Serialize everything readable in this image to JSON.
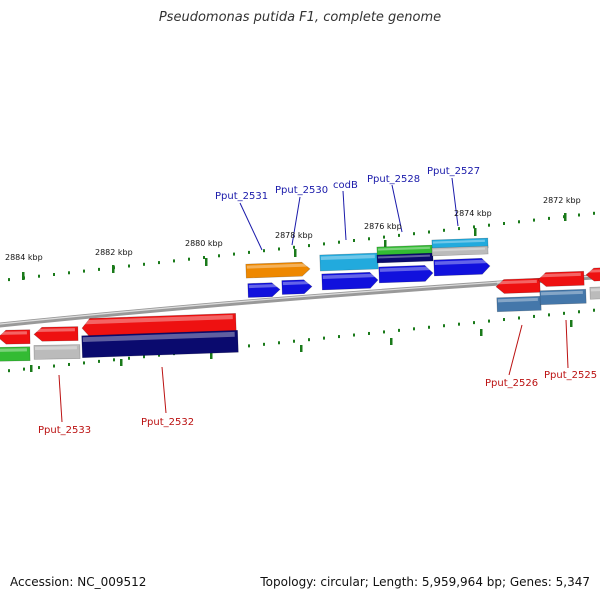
{
  "title": "Pseudomonas putida F1, complete genome",
  "footer": {
    "accession": "Accession: NC_009512",
    "summary": "Topology: circular; Length: 5,959,964 bp; Genes: 5,347"
  },
  "colors": {
    "backbone": "#888888",
    "tick": "#1a7a1a",
    "label_forward": "#1a1aaa",
    "label_reverse": "#bb1111",
    "leader": "#1a1aaa",
    "leader_reverse": "#bb1111"
  },
  "ticks": [
    {
      "label": "2884 kbp"
    },
    {
      "label": "2882 kbp"
    },
    {
      "label": "2880 kbp"
    },
    {
      "label": "2878 kbp"
    },
    {
      "label": "2876 kbp"
    },
    {
      "label": "2874 kbp"
    },
    {
      "label": "2872 kbp"
    }
  ],
  "gene_labels": {
    "forward": [
      "Pput_2531",
      "Pput_2530",
      "codB",
      "Pput_2528",
      "Pput_2527"
    ],
    "reverse": [
      "Pput_2533",
      "Pput_2532",
      "Pput_2526",
      "Pput_2525"
    ]
  },
  "feature_colors": {
    "red": "#ee1111",
    "blue": "#1111dd",
    "navy": "#0a0a6e",
    "orange": "#ee8800",
    "cyan": "#22aadd",
    "green": "#33bb33",
    "grey": "#bbbbbb",
    "steel": "#4477aa"
  }
}
